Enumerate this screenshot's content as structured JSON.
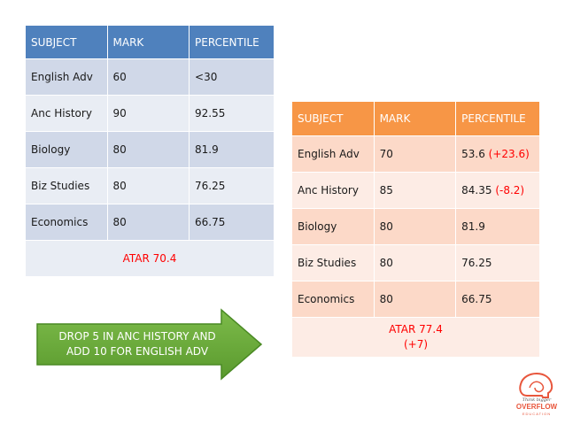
{
  "table_before": {
    "headers": [
      "SUBJECT",
      "MARK",
      "PERCENTILE"
    ],
    "rows": [
      [
        "English Adv",
        "60",
        "<30"
      ],
      [
        "Anc History",
        "90",
        "92.55"
      ],
      [
        "Biology",
        "80",
        "81.9"
      ],
      [
        "Biz Studies",
        "80",
        "76.25"
      ],
      [
        "Economics",
        "80",
        "66.75"
      ]
    ],
    "atar": "ATAR 70.4"
  },
  "table_after": {
    "headers": [
      "SUBJECT",
      "MARK",
      "PERCENTILE"
    ],
    "rows": [
      {
        "subject": "English Adv",
        "mark": "70",
        "percentile": "53.6",
        "change": "(+23.6)"
      },
      {
        "subject": "Anc History",
        "mark": "85",
        "percentile": "84.35",
        "change": "(-8.2)"
      },
      {
        "subject": "Biology",
        "mark": "80",
        "percentile": "81.9",
        "change": ""
      },
      {
        "subject": "Biz Studies",
        "mark": "80",
        "percentile": "76.25",
        "change": ""
      },
      {
        "subject": "Economics",
        "mark": "80",
        "percentile": "66.75",
        "change": ""
      }
    ],
    "atar_line1": "ATAR 77.4",
    "atar_line2": "(+7)"
  },
  "arrow": {
    "line1": "DROP  5 IN ANC HISTORY AND",
    "line2": "ADD 10 FOR ENGLISH ADV"
  },
  "logo": {
    "tagline": "Think bigger",
    "word": "OVERFLOW",
    "sub": "EDUCATION"
  },
  "colors": {
    "blue_header": "#4f81bd",
    "orange_header": "#f79646",
    "arrow_green": "#6aaa3a",
    "highlight_red": "#ff0000",
    "logo_coral": "#e8563c"
  }
}
